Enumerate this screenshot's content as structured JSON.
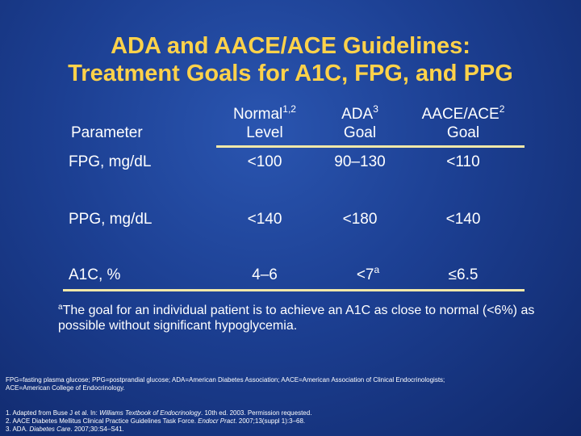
{
  "title": {
    "line1": "ADA and AACE/ACE Guidelines:",
    "line2": "Treatment Goals for A1C, FPG, and PPG"
  },
  "table": {
    "headers": {
      "parameter": "Parameter",
      "normal": {
        "line1": "Normal",
        "sup": "1,2",
        "line2": "Level"
      },
      "ada": {
        "line1": "ADA",
        "sup": "3",
        "line2": "Goal"
      },
      "aace": {
        "line1": "AACE/ACE",
        "sup": "2",
        "line2": "Goal"
      }
    },
    "rows": [
      {
        "parameter": "FPG, mg/dL",
        "normal": "<100",
        "ada": "90–130",
        "ada_sup": "",
        "aace": "<110"
      },
      {
        "parameter": "PPG, mg/dL",
        "normal": "<140",
        "ada": "<180",
        "ada_sup": "",
        "aace": "<140"
      },
      {
        "parameter": "A1C, %",
        "normal": "4–6",
        "ada": "<7",
        "ada_sup": "a",
        "aace": "≤6.5"
      }
    ]
  },
  "footnote": {
    "marker": "a",
    "text": "The goal for an individual patient is to achieve an A1C as close to normal (<6%) as possible without significant hypoglycemia."
  },
  "abbreviations": {
    "line1": "FPG=fasting plasma glucose; PPG=postprandial glucose; ADA=American Diabetes Association; AACE=American Association of Clinical Endocrinologists;",
    "line2": "ACE=American College of Endocrinology."
  },
  "references": [
    {
      "pre": "1. Adapted from Buse J et al. In: ",
      "italic": "Williams Textbook of Endocrinology",
      "post": ". 10th ed. 2003. Permission requested."
    },
    {
      "pre": "2. AACE Diabetes Mellitus Clinical Practice Guidelines Task Force. ",
      "italic": "Endocr Pract",
      "post": ". 2007;13(suppl 1):3–68."
    },
    {
      "pre": "3. ADA. ",
      "italic": "Diabetes Care",
      "post": ". 2007;30:S4–S41."
    }
  ],
  "colors": {
    "title": "#ffd24a",
    "rule": "#f2e8a8",
    "background": "#1c3f92"
  }
}
